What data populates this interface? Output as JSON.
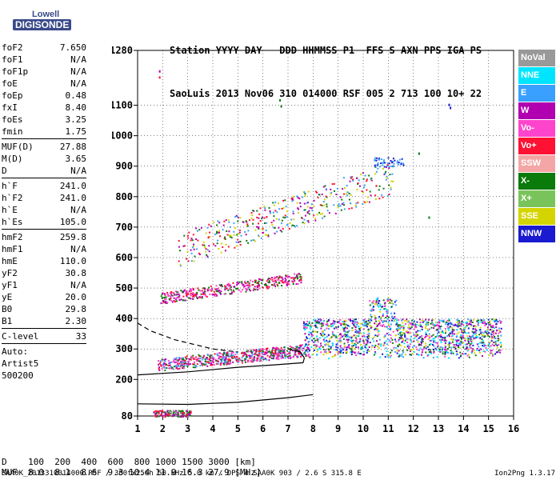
{
  "logo": {
    "line1": "Lowell",
    "line2": "DIGISONDE"
  },
  "header": {
    "labels": [
      "Station",
      "YYYY",
      "DAY",
      "DDD",
      "HHMMSS",
      "P1",
      "FFS",
      "S",
      "AXN",
      "PPS",
      "IGA",
      "PS"
    ],
    "values": [
      "SaoLuis",
      "2013",
      "Nov06",
      "310",
      "014000",
      "RSF",
      "005",
      "2",
      "713",
      "100",
      "10+",
      "22"
    ]
  },
  "params": {
    "group1": [
      {
        "k": "foF2",
        "v": "7.650"
      },
      {
        "k": "foF1",
        "v": "N/A"
      },
      {
        "k": "foF1p",
        "v": "N/A"
      },
      {
        "k": "foE",
        "v": "N/A"
      },
      {
        "k": "foEp",
        "v": "0.48"
      },
      {
        "k": "fxI",
        "v": "8.40"
      },
      {
        "k": "foEs",
        "v": "3.25"
      },
      {
        "k": "fmin",
        "v": "1.75"
      }
    ],
    "group2": [
      {
        "k": "MUF(D)",
        "v": "27.88"
      },
      {
        "k": "M(D)",
        "v": "3.65"
      },
      {
        "k": "D",
        "v": "N/A"
      }
    ],
    "group3": [
      {
        "k": "h`F",
        "v": "241.0"
      },
      {
        "k": "h`F2",
        "v": "241.0"
      },
      {
        "k": "h`E",
        "v": "N/A"
      },
      {
        "k": "h`Es",
        "v": "105.0"
      }
    ],
    "group4": [
      {
        "k": "hmF2",
        "v": "259.8"
      },
      {
        "k": "hmF1",
        "v": "N/A"
      },
      {
        "k": "hmE",
        "v": "110.0"
      },
      {
        "k": "yF2",
        "v": "30.8"
      },
      {
        "k": "yF1",
        "v": "N/A"
      },
      {
        "k": "yE",
        "v": "20.0"
      },
      {
        "k": "B0",
        "v": "29.8"
      },
      {
        "k": "B1",
        "v": "2.30"
      }
    ],
    "group5": [
      {
        "k": "C-level",
        "v": "33"
      }
    ],
    "group6": [
      "Auto:",
      "Artist5",
      "500200"
    ]
  },
  "legend": [
    {
      "label": "NoVal",
      "color": "#999999"
    },
    {
      "label": "NNE",
      "color": "#00e5ff"
    },
    {
      "label": "E",
      "color": "#3aa0ff"
    },
    {
      "label": "W",
      "color": "#b000b0"
    },
    {
      "label": "Vo-",
      "color": "#ff44cc"
    },
    {
      "label": "Vo+",
      "color": "#ff1133"
    },
    {
      "label": "SSW",
      "color": "#f4a6a6"
    },
    {
      "label": "X-",
      "color": "#0a7a0a"
    },
    {
      "label": "X+",
      "color": "#79c45a"
    },
    {
      "label": "SSE",
      "color": "#d4d400"
    },
    {
      "label": "NNW",
      "color": "#1a1ad0"
    }
  ],
  "footer": {
    "line1": "D    100  200  400  600  800 1000 1500 3000 [km]",
    "line2": "MUF  8.0  8.1  8.6  9.3 10.4 11.9 16.3 27.9 [MHz]",
    "bottom": "SAA0K_2013310014000.RSF / 300fx256h 50 kHz 5.0 km / DPS-4 SAA0K 903 / 2.6 S 315.8 E",
    "version": "Ion2Png 1.3.17"
  },
  "chart_data": {
    "type": "scatter",
    "xlim": [
      1,
      16
    ],
    "xticks": [
      1,
      2,
      3,
      4,
      5,
      6,
      7,
      8,
      9,
      10,
      11,
      12,
      13,
      14,
      15,
      16
    ],
    "ylim": [
      80,
      1280
    ],
    "yticks": [
      80,
      200,
      300,
      400,
      500,
      600,
      700,
      800,
      900,
      1000,
      1100,
      1280
    ],
    "grid": true,
    "clusters": [
      {
        "name": "E-sporadic",
        "x": [
          1.6,
          3.1
        ],
        "y": [
          80,
          100
        ],
        "colors": [
          "#0a7a0a",
          "#ff1133",
          "#b000b0",
          "#999999"
        ]
      },
      {
        "name": "F-trace-1",
        "x": [
          1.8,
          7.8
        ],
        "y": [
          220,
          320
        ],
        "colors": [
          "#ff1133",
          "#b000b0",
          "#0a7a0a",
          "#3aa0ff",
          "#ff44cc"
        ]
      },
      {
        "name": "F-spread",
        "x": [
          7.6,
          15.5
        ],
        "y": [
          270,
          460
        ],
        "colors": [
          "#3aa0ff",
          "#ff44cc",
          "#b000b0",
          "#0a7a0a",
          "#d4d400",
          "#1a1ad0",
          "#00e5ff"
        ]
      },
      {
        "name": "F-trace-2",
        "x": [
          1.9,
          7.5
        ],
        "y": [
          440,
          560
        ],
        "colors": [
          "#b000b0",
          "#ff1133",
          "#0a7a0a",
          "#ff44cc"
        ]
      },
      {
        "name": "F-trace-3",
        "x": [
          2.6,
          11.2
        ],
        "y": [
          560,
          800
        ],
        "colors": [
          "#b000b0",
          "#ff1133",
          "#0a7a0a",
          "#3aa0ff",
          "#d4d400"
        ]
      },
      {
        "name": "F-trace-4",
        "x": [
          10.4,
          11.6
        ],
        "y": [
          900,
          930
        ],
        "colors": [
          "#3aa0ff",
          "#1a1ad0"
        ]
      }
    ],
    "fit_lines": [
      {
        "name": "profile-solid",
        "points": [
          [
            1,
            215
          ],
          [
            3,
            225
          ],
          [
            5,
            240
          ],
          [
            6.5,
            248
          ],
          [
            7.6,
            255
          ],
          [
            7.65,
            270
          ],
          [
            7.5,
            290
          ],
          [
            7,
            300
          ]
        ]
      },
      {
        "name": "profile-dashed",
        "points": [
          [
            1,
            385
          ],
          [
            1.5,
            360
          ],
          [
            2.5,
            330
          ],
          [
            4,
            300
          ],
          [
            5,
            290
          ]
        ]
      },
      {
        "name": "profile-low",
        "points": [
          [
            1,
            120
          ],
          [
            3,
            118
          ],
          [
            5,
            125
          ],
          [
            7,
            140
          ],
          [
            8,
            150
          ]
        ]
      }
    ]
  }
}
